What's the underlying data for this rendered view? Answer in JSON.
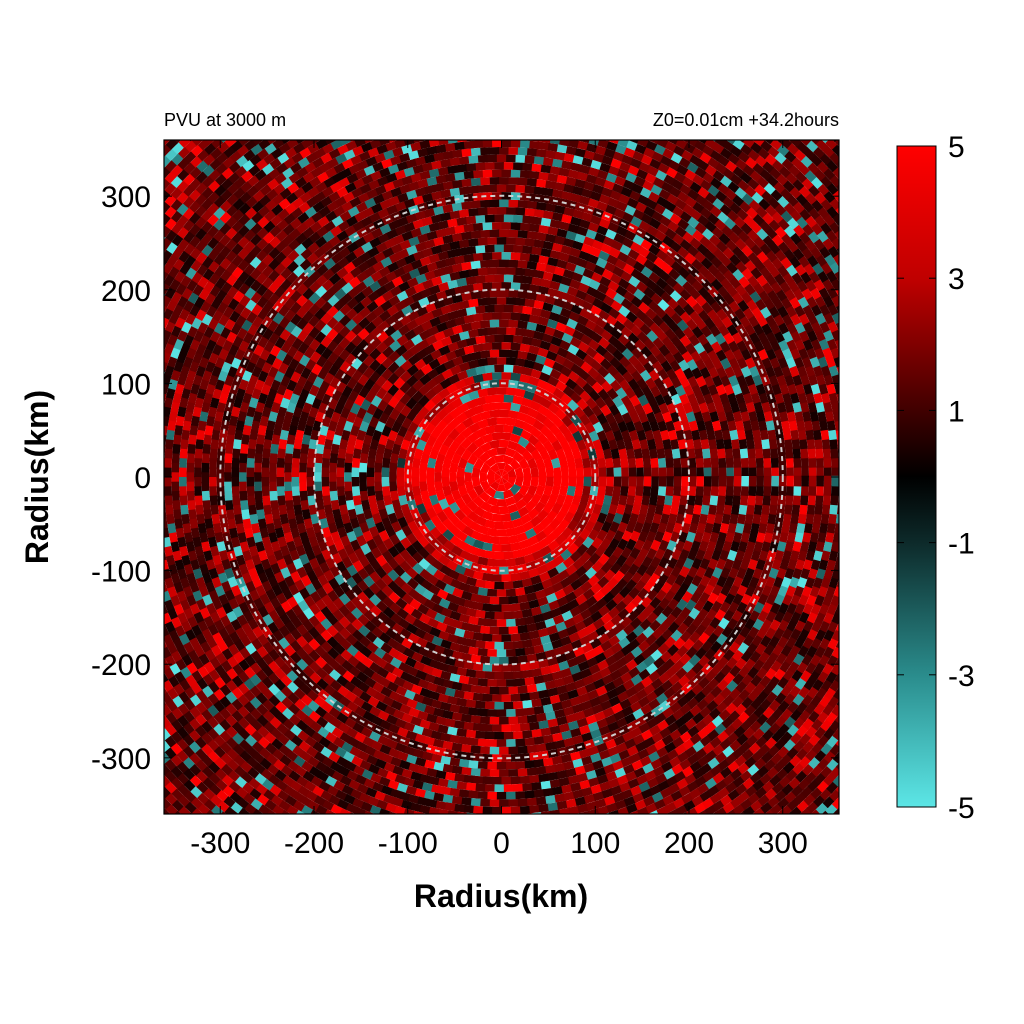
{
  "chart_data": {
    "type": "heatmap",
    "title_left": "PVU at  3000 m",
    "title_right": "Z0=0.01cm  +34.2hours",
    "xlabel": "Radius(km)",
    "ylabel": "Radius(km)",
    "xlim": [
      -360,
      360
    ],
    "ylim": [
      -360,
      360
    ],
    "x_ticks": [
      -300,
      -200,
      -100,
      0,
      100,
      200,
      300
    ],
    "y_ticks": [
      300,
      200,
      100,
      0,
      -100,
      -200,
      -300
    ],
    "domain_radius_km": 360,
    "reference_circles_km": [
      100,
      200,
      300
    ],
    "colorbar": {
      "range": [
        -5,
        5
      ],
      "ticks": [
        5,
        3,
        1,
        -1,
        -3,
        -5
      ],
      "colors": [
        {
          "value": 5,
          "color": "#ff0000"
        },
        {
          "value": 3,
          "color": "#c00000"
        },
        {
          "value": 1,
          "color": "#400000"
        },
        {
          "value": 0,
          "color": "#000000"
        },
        {
          "value": -1,
          "color": "#0d2a2a"
        },
        {
          "value": -3,
          "color": "#2a8c8c"
        },
        {
          "value": -5,
          "color": "#5ce6e6"
        }
      ]
    },
    "field_description": {
      "core_value_pvu": 5,
      "outer_background_pvu": 1.5
    }
  }
}
